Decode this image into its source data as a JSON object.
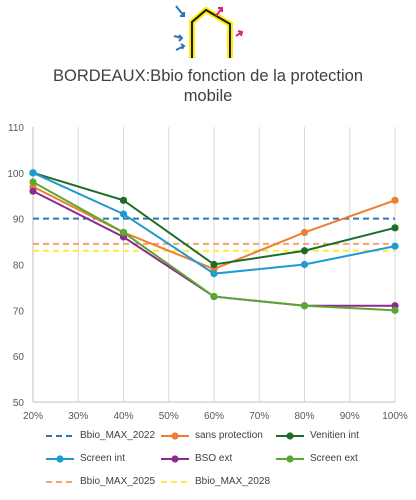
{
  "chart_data": {
    "type": "line",
    "title_lines": [
      "BORDEAUX:Bbio fonction de la protection",
      "mobile"
    ],
    "x": [
      20,
      40,
      60,
      80,
      100
    ],
    "x_ticks": [
      "20%",
      "30%",
      "40%",
      "50%",
      "60%",
      "70%",
      "80%",
      "90%",
      "100%"
    ],
    "y_ticks": [
      "50",
      "60",
      "70",
      "80",
      "90",
      "100",
      "110"
    ],
    "xlim": [
      20,
      100
    ],
    "ylim": [
      50,
      110
    ],
    "grid": "vertical",
    "legend_position": "bottom",
    "thresholds": [
      {
        "name": "Bbio_MAX_2022",
        "value": 90,
        "color": "#2e75b6"
      },
      {
        "name": "Bbio_MAX_2025",
        "value": 84.5,
        "color": "#f4a46e"
      },
      {
        "name": "Bbio_MAX_2028",
        "value": 83,
        "color": "#ffeb3b"
      }
    ],
    "series": [
      {
        "name": "sans protection",
        "values": [
          97,
          87,
          79,
          87,
          94
        ],
        "color": "#ed7d31"
      },
      {
        "name": "Venitien int",
        "values": [
          100,
          94,
          80,
          83,
          88
        ],
        "color": "#1e6b2a"
      },
      {
        "name": "Screen int",
        "values": [
          100,
          91,
          78,
          80,
          84
        ],
        "color": "#1f9bd1"
      },
      {
        "name": "BSO ext",
        "values": [
          96,
          86,
          73,
          71,
          71
        ],
        "color": "#8e2a8e"
      },
      {
        "name": "Screen ext",
        "values": [
          98,
          87,
          73,
          71,
          70
        ],
        "color": "#5aa832"
      }
    ]
  }
}
